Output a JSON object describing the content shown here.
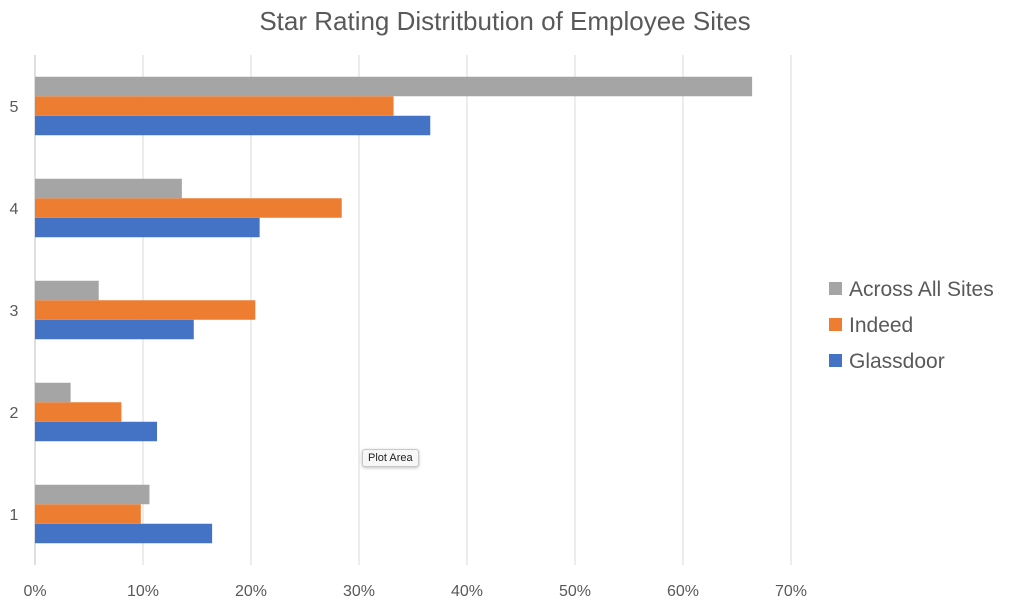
{
  "chart_data": {
    "type": "bar",
    "orientation": "horizontal",
    "title": "Star Rating Distritbution of Employee Sites",
    "categories": [
      "1",
      "2",
      "3",
      "4",
      "5"
    ],
    "series": [
      {
        "name": "Glassdoor",
        "color": "#4472c4",
        "values": [
          16.4,
          11.3,
          14.7,
          20.8,
          36.6
        ]
      },
      {
        "name": "Indeed",
        "color": "#ed7d31",
        "values": [
          9.8,
          8.0,
          20.4,
          28.4,
          33.2
        ]
      },
      {
        "name": "Across All Sites",
        "color": "#a5a5a5",
        "values": [
          10.6,
          3.3,
          5.9,
          13.6,
          66.4
        ]
      }
    ],
    "xlim": [
      0,
      70
    ],
    "xticks": [
      "0%",
      "10%",
      "20%",
      "30%",
      "40%",
      "50%",
      "60%",
      "70%"
    ],
    "grid": "vertical",
    "legend_position": "right"
  },
  "tooltip": {
    "text": "Plot Area"
  }
}
